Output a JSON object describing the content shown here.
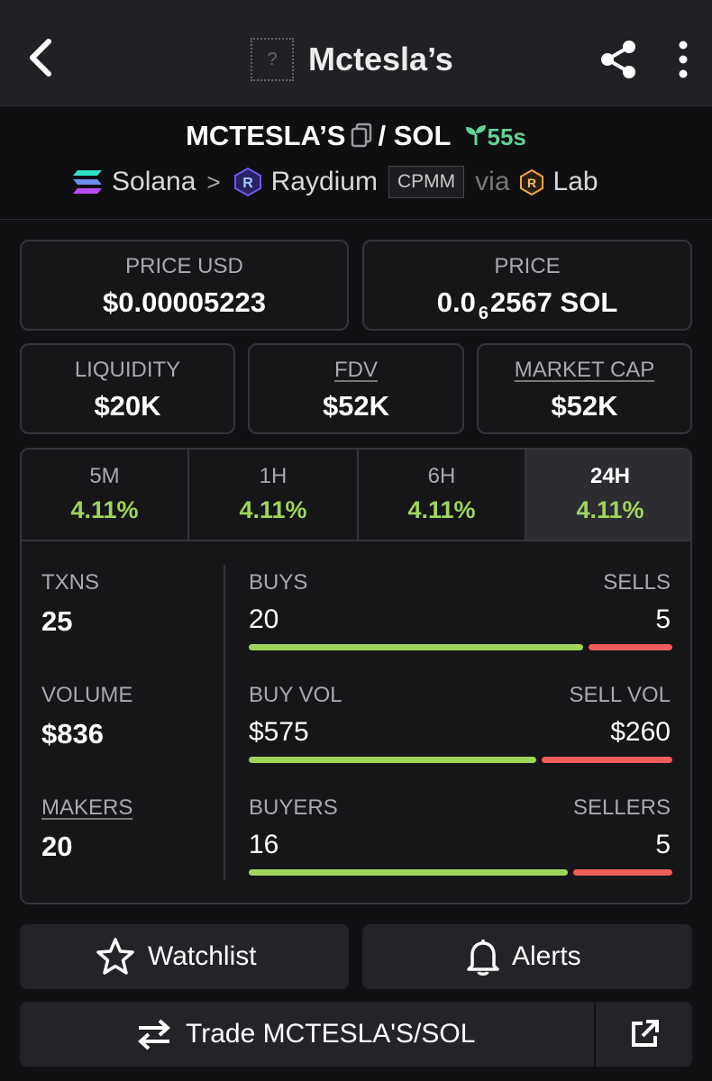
{
  "header": {
    "title": "Mctesla’s",
    "logo_placeholder": "?"
  },
  "pair": {
    "base": "MCTESLA’S",
    "slash_quote": "/ SOL",
    "age": "55s",
    "chain": "Solana",
    "dex": "Raydium",
    "pool_type": "CPMM",
    "via_label": "via",
    "launchpad": "Lab"
  },
  "metrics": {
    "price_usd": {
      "label": "PRICE USD",
      "value": "$0.00005223"
    },
    "price_native": {
      "label": "PRICE",
      "prefix": "0.0",
      "zeros": "6",
      "digits": "2567 SOL"
    },
    "liquidity": {
      "label": "LIQUIDITY",
      "value": "$20K"
    },
    "fdv": {
      "label": "FDV",
      "value": "$52K"
    },
    "market_cap": {
      "label": "MARKET CAP",
      "value": "$52K"
    }
  },
  "timeframes": [
    {
      "label": "5M",
      "change": "4.11%"
    },
    {
      "label": "1H",
      "change": "4.11%"
    },
    {
      "label": "6H",
      "change": "4.11%"
    },
    {
      "label": "24H",
      "change": "4.11%"
    }
  ],
  "active_timeframe": "24H",
  "stats": {
    "txns": {
      "label": "TXNS",
      "value": "25",
      "buys_label": "BUYS",
      "buys": "20",
      "sells_label": "SELLS",
      "sells": "5",
      "buy_fraction": 0.8
    },
    "volume": {
      "label": "VOLUME",
      "value": "$836",
      "buy_label": "BUY VOL",
      "buy": "$575",
      "sell_label": "SELL VOL",
      "sell": "$260",
      "buy_fraction": 0.688
    },
    "makers": {
      "label": "MAKERS",
      "value": "20",
      "buyers_label": "BUYERS",
      "buyers": "16",
      "sellers_label": "SELLERS",
      "sellers": "5",
      "buy_fraction": 0.762
    }
  },
  "actions": {
    "watchlist": "Watchlist",
    "alerts": "Alerts",
    "trade": "Trade MCTESLA'S/SOL"
  },
  "colors": {
    "positive": "#9fd45c",
    "negative": "#ee5c5c",
    "age_green": "#60d394"
  },
  "icons": [
    "back-arrow-icon",
    "share-icon",
    "more-vertical-icon",
    "copy-icon",
    "sprout-icon",
    "solana-icon",
    "raydium-icon",
    "lab-icon",
    "star-icon",
    "bell-icon",
    "swap-arrows-icon",
    "external-link-icon"
  ]
}
